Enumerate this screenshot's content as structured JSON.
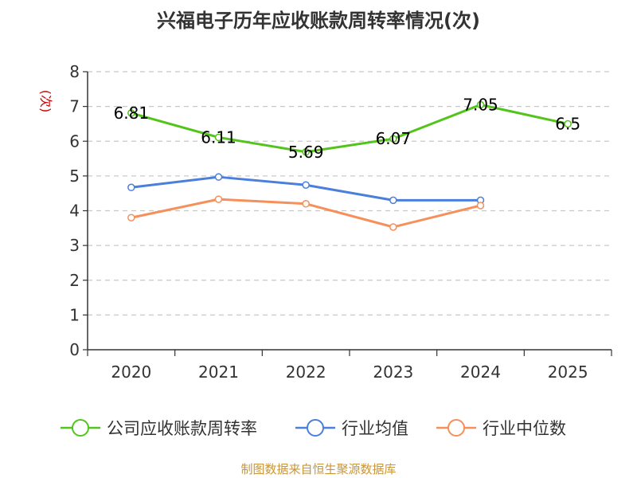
{
  "chart_data": {
    "type": "line",
    "title": "兴福电子历年应收账款周转率情况(次)",
    "ylabel": "(次)",
    "xlabel": "",
    "ylim": [
      0,
      8
    ],
    "yticks": [
      "0",
      "1",
      "2",
      "3",
      "4",
      "5",
      "6",
      "7",
      "8"
    ],
    "categories": [
      "2020",
      "2021",
      "2022",
      "2023",
      "2024",
      "2025"
    ],
    "grid": true,
    "legend_position": "bottom",
    "series": [
      {
        "name": "公司应收账款周转率",
        "color": "#52c41a",
        "values": [
          6.81,
          6.11,
          5.69,
          6.07,
          7.05,
          6.5
        ],
        "labels": [
          "6.81",
          "6.11",
          "5.69",
          "6.07",
          "7.05",
          "6.5"
        ]
      },
      {
        "name": "行业均值",
        "color": "#4a7fdb",
        "values": [
          4.67,
          4.97,
          4.74,
          4.3,
          4.3,
          null
        ]
      },
      {
        "name": "行业中位数",
        "color": "#f5905a",
        "values": [
          3.8,
          4.33,
          4.2,
          3.53,
          4.15,
          null
        ]
      }
    ],
    "source": "制图数据来自恒生聚源数据库"
  }
}
